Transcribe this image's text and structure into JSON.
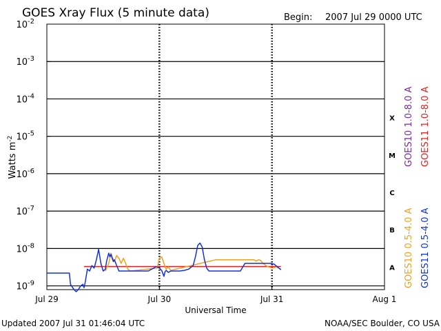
{
  "header": {
    "title": "GOES Xray Flux (5 minute data)",
    "begin_label": "Begin:",
    "begin_value": "2007 Jul 29 0000 UTC"
  },
  "footer": {
    "updated": "Updated 2007 Jul 31 01:46:04 UTC",
    "credit": "NOAA/SEC Boulder, CO USA"
  },
  "colors": {
    "goes10_long": "#7a2a9a",
    "goes11_long": "#e02020",
    "goes10_short": "#f0a020",
    "goes11_short": "#1030e0",
    "grid": "#000000"
  },
  "chart_data": {
    "type": "line",
    "title": "GOES Xray Flux (5 minute data)",
    "xlabel": "Universal Time",
    "ylabel": "Watts m",
    "ylabel_sup": "-2",
    "y_scale": "log",
    "ylim_exp": [
      -9.1,
      -2
    ],
    "y_ticks": [
      {
        "exp": -2,
        "base": "10",
        "sup": "-2"
      },
      {
        "exp": -3,
        "base": "10",
        "sup": "-3"
      },
      {
        "exp": -4,
        "base": "10",
        "sup": "-4"
      },
      {
        "exp": -5,
        "base": "10",
        "sup": "-5"
      },
      {
        "exp": -6,
        "base": "10",
        "sup": "-6"
      },
      {
        "exp": -7,
        "base": "10",
        "sup": "-7"
      },
      {
        "exp": -8,
        "base": "10",
        "sup": "-8"
      },
      {
        "exp": -9,
        "base": "10",
        "sup": "-9"
      }
    ],
    "x_ticks": [
      {
        "day": 0,
        "label": "Jul 29"
      },
      {
        "day": 1,
        "label": "Jul 30"
      },
      {
        "day": 2,
        "label": "Jul 31"
      },
      {
        "day": 3,
        "label": "Aug 1"
      }
    ],
    "xlim_days": [
      0,
      3
    ],
    "grid": "horizontal solid at decades; vertical dashed at day boundaries",
    "flare_classes": [
      {
        "label": "X",
        "exp": -4
      },
      {
        "label": "M",
        "exp": -5
      },
      {
        "label": "C",
        "exp": -6
      },
      {
        "label": "B",
        "exp": -7
      },
      {
        "label": "A",
        "exp": -8
      }
    ],
    "legend_right_top": [
      {
        "label": "GOES10 1.0-8.0 A",
        "color_key": "goes10_long"
      },
      {
        "label": "GOES11 1.0-8.0 A",
        "color_key": "goes11_long"
      }
    ],
    "legend_right_bottom": [
      {
        "label": "GOES10 0.5-4.0 A",
        "color_key": "goes10_short"
      },
      {
        "label": "GOES11 0.5-4.0 A",
        "color_key": "goes11_short"
      }
    ],
    "series": [
      {
        "name": "GOES11 1.0-8.0 A",
        "color_key": "goes11_long",
        "x": [
          0.33,
          2.08
        ],
        "y": [
          3.3e-09,
          3.3e-09
        ]
      },
      {
        "name": "GOES10 0.5-4.0 A",
        "color_key": "goes10_short",
        "x": [
          0.52,
          0.55,
          0.57,
          0.58,
          0.6,
          0.62,
          0.64,
          0.66,
          0.68,
          0.7,
          0.72,
          0.74,
          0.98,
          1.0,
          1.02,
          1.04,
          1.06,
          1.08,
          1.1,
          1.5,
          1.7,
          1.84,
          1.86,
          1.88,
          1.9,
          1.92,
          1.94,
          1.96,
          2.0,
          2.04,
          2.08
        ],
        "y": [
          2.5e-09,
          4e-09,
          7.5e-09,
          6e-09,
          4.5e-09,
          6.5e-09,
          5.5e-09,
          4e-09,
          5.5e-09,
          4e-09,
          2.8e-09,
          2.5e-09,
          3e-09,
          5.5e-09,
          6e-09,
          4e-09,
          2.8e-09,
          3.2e-09,
          2.6e-09,
          5e-09,
          5e-09,
          5e-09,
          4.6e-09,
          5e-09,
          4.8e-09,
          4e-09,
          3.6e-09,
          3.3e-09,
          3e-09,
          3.2e-09,
          2.8e-09
        ]
      },
      {
        "name": "GOES11 0.5-4.0 A",
        "color_key": "goes11_short",
        "x": [
          0.0,
          0.2,
          0.21,
          0.24,
          0.26,
          0.28,
          0.3,
          0.32,
          0.33,
          0.34,
          0.36,
          0.38,
          0.4,
          0.42,
          0.44,
          0.46,
          0.48,
          0.5,
          0.52,
          0.53,
          0.55,
          0.56,
          0.57,
          0.58,
          0.59,
          0.6,
          0.62,
          0.63,
          0.64,
          0.65,
          0.66,
          0.68,
          0.7,
          0.75,
          0.8,
          0.85,
          0.9,
          0.95,
          0.97,
          1.0,
          1.02,
          1.04,
          1.05,
          1.06,
          1.08,
          1.1,
          1.14,
          1.18,
          1.22,
          1.26,
          1.3,
          1.32,
          1.34,
          1.36,
          1.38,
          1.4,
          1.42,
          1.44,
          1.46,
          1.5,
          1.54,
          1.58,
          1.62,
          1.66,
          1.7,
          1.72,
          1.76,
          1.8,
          1.84,
          1.88,
          1.92,
          1.96,
          1.99,
          2.02,
          2.05,
          2.08
        ],
        "y": [
          2.2e-09,
          2.2e-09,
          1.1e-09,
          8e-10,
          7e-10,
          8e-10,
          1e-09,
          1.1e-09,
          9e-10,
          1.2e-09,
          2.8e-09,
          2.5e-09,
          3.5e-09,
          3e-09,
          5e-09,
          9.5e-09,
          4e-09,
          2.5e-09,
          2.8e-09,
          4.5e-09,
          7.5e-09,
          6e-09,
          7e-09,
          5.5e-09,
          4.5e-09,
          5e-09,
          3.5e-09,
          3e-09,
          2.5e-09,
          2.5e-09,
          2.5e-09,
          2.5e-09,
          2.5e-09,
          2.5e-09,
          2.5e-09,
          2.5e-09,
          2.5e-09,
          3e-09,
          3.3e-09,
          3e-09,
          2.6e-09,
          1.8e-09,
          2.4e-09,
          2.6e-09,
          2.3e-09,
          2.5e-09,
          2.5e-09,
          2.5e-09,
          2.6e-09,
          2.8e-09,
          3.5e-09,
          6e-09,
          1.2e-08,
          1.4e-08,
          1.1e-08,
          5e-09,
          3e-09,
          2.5e-09,
          2.5e-09,
          2.5e-09,
          2.5e-09,
          2.5e-09,
          2.5e-09,
          2.5e-09,
          2.5e-09,
          2.5e-09,
          4e-09,
          4e-09,
          4e-09,
          4e-09,
          4e-09,
          4e-09,
          4e-09,
          3.8e-09,
          3.2e-09,
          2.7e-09
        ]
      }
    ]
  }
}
